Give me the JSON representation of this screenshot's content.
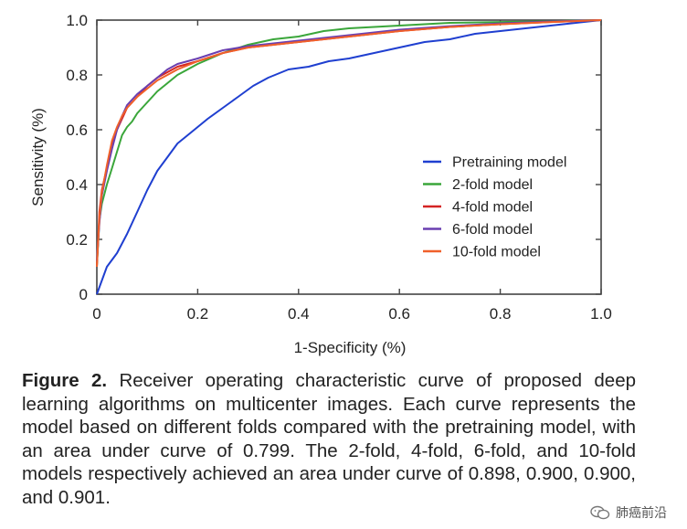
{
  "chart_data": {
    "type": "line",
    "xlabel": "1-Specificity (%)",
    "ylabel": "Sensitivity (%)",
    "xlim": [
      0,
      1.0
    ],
    "ylim": [
      0,
      1.0
    ],
    "xticks": [
      "0",
      "0.2",
      "0.4",
      "0.6",
      "0.8",
      "1.0"
    ],
    "yticks": [
      "0",
      "0.2",
      "0.4",
      "0.6",
      "0.8",
      "1.0"
    ],
    "grid": false,
    "legend_position": "bottom-right",
    "series": [
      {
        "name": "Pretraining model",
        "color": "#1f3fd0",
        "x": [
          0,
          0.01,
          0.02,
          0.04,
          0.06,
          0.08,
          0.1,
          0.12,
          0.14,
          0.16,
          0.18,
          0.2,
          0.22,
          0.25,
          0.28,
          0.31,
          0.34,
          0.38,
          0.42,
          0.46,
          0.5,
          0.55,
          0.6,
          0.65,
          0.7,
          0.75,
          0.8,
          0.85,
          0.9,
          0.95,
          1.0
        ],
        "y": [
          0,
          0.05,
          0.1,
          0.15,
          0.22,
          0.3,
          0.38,
          0.45,
          0.5,
          0.55,
          0.58,
          0.61,
          0.64,
          0.68,
          0.72,
          0.76,
          0.79,
          0.82,
          0.83,
          0.85,
          0.86,
          0.88,
          0.9,
          0.92,
          0.93,
          0.95,
          0.96,
          0.97,
          0.98,
          0.99,
          1.0
        ]
      },
      {
        "name": "2-fold model",
        "color": "#3aa63a",
        "x": [
          0,
          0.005,
          0.01,
          0.02,
          0.03,
          0.04,
          0.05,
          0.06,
          0.07,
          0.08,
          0.1,
          0.12,
          0.14,
          0.16,
          0.18,
          0.2,
          0.25,
          0.3,
          0.35,
          0.4,
          0.45,
          0.5,
          0.55,
          0.6,
          0.65,
          0.7,
          0.8,
          0.9,
          1.0
        ],
        "y": [
          0.1,
          0.27,
          0.33,
          0.4,
          0.46,
          0.52,
          0.58,
          0.61,
          0.63,
          0.66,
          0.7,
          0.74,
          0.77,
          0.8,
          0.82,
          0.84,
          0.88,
          0.91,
          0.93,
          0.94,
          0.96,
          0.97,
          0.975,
          0.98,
          0.985,
          0.99,
          0.993,
          0.996,
          1.0
        ]
      },
      {
        "name": "4-fold model",
        "color": "#d42424",
        "x": [
          0,
          0.005,
          0.01,
          0.02,
          0.03,
          0.04,
          0.05,
          0.06,
          0.08,
          0.1,
          0.12,
          0.14,
          0.16,
          0.18,
          0.2,
          0.25,
          0.3,
          0.35,
          0.4,
          0.45,
          0.5,
          0.55,
          0.6,
          0.7,
          0.8,
          0.9,
          1.0
        ],
        "y": [
          0.1,
          0.3,
          0.38,
          0.46,
          0.55,
          0.6,
          0.64,
          0.68,
          0.72,
          0.76,
          0.79,
          0.81,
          0.83,
          0.84,
          0.85,
          0.88,
          0.9,
          0.91,
          0.92,
          0.93,
          0.94,
          0.95,
          0.96,
          0.975,
          0.985,
          0.993,
          1.0
        ]
      },
      {
        "name": "6-fold model",
        "color": "#6a3fb0",
        "x": [
          0,
          0.005,
          0.01,
          0.02,
          0.03,
          0.04,
          0.05,
          0.06,
          0.08,
          0.1,
          0.12,
          0.14,
          0.16,
          0.18,
          0.2,
          0.25,
          0.3,
          0.35,
          0.4,
          0.45,
          0.5,
          0.55,
          0.6,
          0.7,
          0.8,
          0.9,
          1.0
        ],
        "y": [
          0.12,
          0.26,
          0.36,
          0.45,
          0.53,
          0.6,
          0.65,
          0.69,
          0.73,
          0.76,
          0.79,
          0.82,
          0.84,
          0.85,
          0.86,
          0.89,
          0.905,
          0.915,
          0.925,
          0.935,
          0.945,
          0.955,
          0.965,
          0.978,
          0.988,
          0.995,
          1.0
        ]
      },
      {
        "name": "10-fold model",
        "color": "#f0602a",
        "x": [
          0,
          0.005,
          0.01,
          0.02,
          0.03,
          0.04,
          0.05,
          0.06,
          0.08,
          0.1,
          0.12,
          0.14,
          0.16,
          0.18,
          0.2,
          0.25,
          0.3,
          0.35,
          0.4,
          0.45,
          0.5,
          0.55,
          0.6,
          0.7,
          0.8,
          0.9,
          1.0
        ],
        "y": [
          0.1,
          0.28,
          0.37,
          0.47,
          0.56,
          0.61,
          0.65,
          0.68,
          0.72,
          0.75,
          0.78,
          0.8,
          0.82,
          0.835,
          0.85,
          0.88,
          0.9,
          0.91,
          0.92,
          0.93,
          0.94,
          0.95,
          0.96,
          0.975,
          0.985,
          0.993,
          1.0
        ]
      }
    ]
  },
  "caption": {
    "label": "Figure 2.",
    "text": " Receiver operating characteristic curve of proposed deep learning algorithms on multicenter images. Each curve represents the model based on different folds compared with the pretraining model, with an area under curve of 0.799. The 2-fold, 4-fold, 6-fold, and 10-fold models respectively achieved an area under curve of 0.898, 0.900, 0.900, and 0.901."
  },
  "watermark": {
    "text": "肺癌前沿",
    "icon": "wechat-icon"
  }
}
